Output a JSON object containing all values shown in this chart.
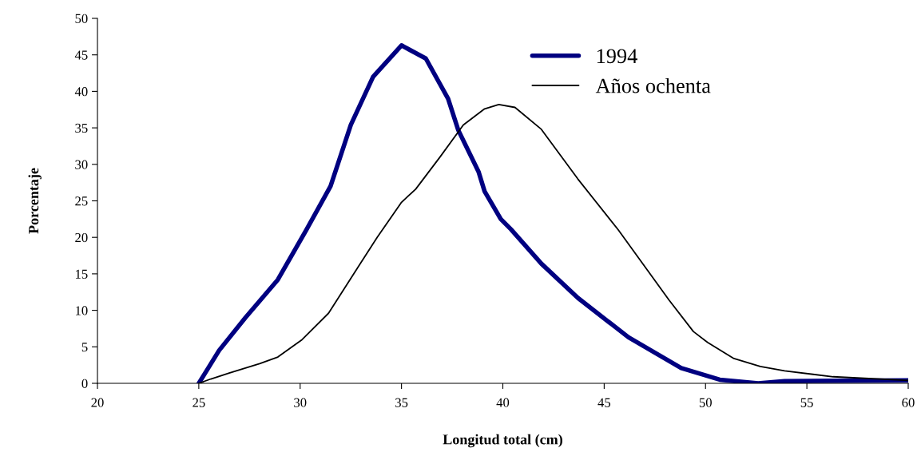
{
  "chart_data": {
    "type": "line",
    "xlabel": "Longitud total (cm)",
    "ylabel": "Porcentaje",
    "xlim": [
      20,
      60
    ],
    "xticks": [
      20,
      25,
      30,
      35,
      40,
      45,
      50,
      55,
      60
    ],
    "ylim": [
      0,
      50
    ],
    "yticks": [
      0,
      5,
      10,
      15,
      20,
      25,
      30,
      35,
      40,
      45,
      50
    ],
    "grid": false,
    "legend": "top right",
    "marker": "none",
    "line_style": "solid",
    "series": [
      {
        "name": "1994",
        "color": "#000080",
        "x": [
          25,
          26,
          27.3,
          28.9,
          30.3,
          31.5,
          32.5,
          33.6,
          35,
          36.2,
          37.3,
          37.8,
          38.8,
          39.1,
          39.9,
          40.4,
          41.9,
          43.7,
          46.2,
          48.8,
          50.7,
          52.6,
          53.9,
          60
        ],
        "values": [
          0,
          4.5,
          9,
          14.2,
          21,
          27,
          35.4,
          42,
          46.3,
          44.5,
          39,
          34.7,
          29,
          26.3,
          22.5,
          21.1,
          16.4,
          11.7,
          6.3,
          2.1,
          0.5,
          0,
          0.3,
          0.4
        ]
      },
      {
        "name": "Años ochenta",
        "color": "#000000",
        "x": [
          25,
          25.6,
          26.5,
          28,
          28.9,
          30.1,
          31.4,
          32.9,
          33.8,
          35,
          35.7,
          36.9,
          38.05,
          39.1,
          39.8,
          40.6,
          41.9,
          43.7,
          45.7,
          48.2,
          49.4,
          50.1,
          51.4,
          52.7,
          53.9,
          56.3,
          60
        ],
        "values": [
          0,
          0.6,
          1.4,
          2.7,
          3.6,
          6,
          9.6,
          16.1,
          20,
          24.8,
          26.6,
          31,
          35.4,
          37.6,
          38.2,
          37.8,
          34.8,
          28,
          21,
          11.4,
          7.1,
          5.6,
          3.4,
          2.3,
          1.7,
          0.9,
          0.4
        ]
      }
    ]
  }
}
